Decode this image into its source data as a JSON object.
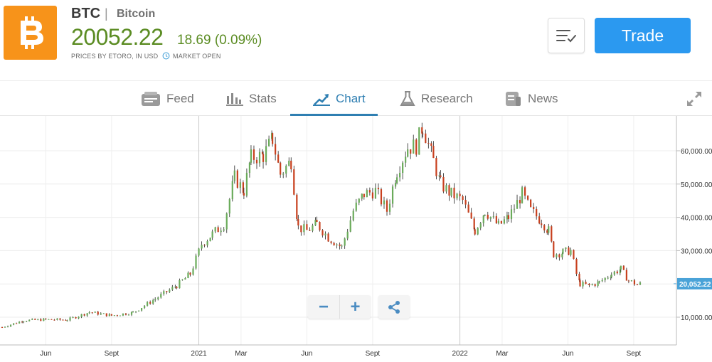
{
  "instrument": {
    "ticker": "BTC",
    "separator": "|",
    "name": "Bitcoin",
    "price": "20052.22",
    "change": "18.69 (0.09%)",
    "prices_by": "PRICES BY ETORO, IN USD",
    "market_status": "MARKET OPEN",
    "logo_icon": "bitcoin-logo-icon",
    "colors": {
      "price_up": "#5b8c23",
      "logo_bg": "#f7931a",
      "accent": "#2b99f0"
    }
  },
  "actions": {
    "watchlist_icon": "watchlist-icon",
    "trade_label": "Trade"
  },
  "tabs": [
    {
      "label": "Feed",
      "icon": "feed-icon",
      "active": false
    },
    {
      "label": "Stats",
      "icon": "stats-icon",
      "active": false
    },
    {
      "label": "Chart",
      "icon": "chart-icon",
      "active": true
    },
    {
      "label": "Research",
      "icon": "research-icon",
      "active": false
    },
    {
      "label": "News",
      "icon": "news-icon",
      "active": false
    }
  ],
  "chart_controls": {
    "zoom_out": "−",
    "zoom_in": "+",
    "share_icon": "share-icon",
    "expand_icon": "expand-icon"
  },
  "chart_data": {
    "type": "line",
    "title": "",
    "xlabel": "",
    "ylabel": "",
    "y_ticks": [
      "10,000.00",
      "20,000.00",
      "30,000.00",
      "40,000.00",
      "50,000.00",
      "60,000.00"
    ],
    "y_tick_values": [
      10000,
      20000,
      30000,
      40000,
      50000,
      60000
    ],
    "x_ticks": [
      "Jun",
      "Sept",
      "2021",
      "Mar",
      "Jun",
      "Sept",
      "2022",
      "Mar",
      "Jun",
      "Sept"
    ],
    "ylim": [
      0,
      70000
    ],
    "last_price_label": "20,052.22",
    "last_price": 20052.22,
    "grid": true,
    "colors": {
      "up": "#6aab5a",
      "down": "#c8401e",
      "line": "#222222",
      "price_tag": "#4aa3d8"
    },
    "series": [
      {
        "x": [
          "2020-04-01",
          "2020-05-01",
          "2020-06-01",
          "2020-07-01",
          "2020-08-01",
          "2020-09-01",
          "2020-10-01",
          "2020-11-01",
          "2020-12-01",
          "2020-12-20",
          "2021-01-05",
          "2021-01-20",
          "2021-02-05",
          "2021-02-20",
          "2021-03-05",
          "2021-03-15",
          "2021-04-01",
          "2021-04-14",
          "2021-04-25",
          "2021-05-10",
          "2021-05-20",
          "2021-06-01",
          "2021-06-15",
          "2021-07-01",
          "2021-07-20",
          "2021-08-05",
          "2021-08-20",
          "2021-09-05",
          "2021-09-21",
          "2021-10-05",
          "2021-10-20",
          "2021-11-01",
          "2021-11-10",
          "2021-11-25",
          "2021-12-05",
          "2021-12-20",
          "2022-01-05",
          "2022-01-22",
          "2022-02-05",
          "2022-02-24",
          "2022-03-10",
          "2022-03-29",
          "2022-04-10",
          "2022-04-25",
          "2022-05-05",
          "2022-05-12",
          "2022-05-25",
          "2022-06-05",
          "2022-06-13",
          "2022-06-18",
          "2022-07-01",
          "2022-07-15",
          "2022-08-01",
          "2022-08-14",
          "2022-08-25",
          "2022-09-06",
          "2022-09-12"
        ],
        "y": [
          7000,
          9000,
          9300,
          9200,
          11500,
          10500,
          11400,
          15500,
          19500,
          23000,
          32000,
          35000,
          38000,
          52000,
          48000,
          58000,
          58500,
          63500,
          53000,
          57000,
          37000,
          36000,
          38000,
          34000,
          31000,
          42000,
          47000,
          48000,
          42000,
          54000,
          61000,
          61500,
          67500,
          57000,
          50000,
          47000,
          45000,
          36000,
          42000,
          37500,
          40000,
          47000,
          42000,
          39000,
          36000,
          29000,
          29500,
          30000,
          23000,
          20000,
          19500,
          20500,
          23000,
          24500,
          21000,
          19800,
          20052
        ]
      }
    ]
  }
}
